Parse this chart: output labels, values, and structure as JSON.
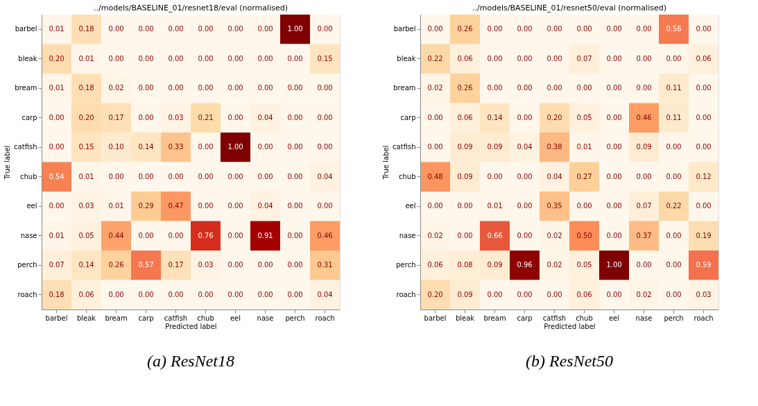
{
  "chart_data": [
    {
      "type": "heatmap",
      "title": "../models/BASELINE_01/resnet18/eval (normalised)",
      "xlabel": "Predicted label",
      "ylabel": "True label",
      "annotations": [
        "(a) ResNet18"
      ],
      "categories": [
        "barbel",
        "bleak",
        "bream",
        "carp",
        "catfish",
        "chub",
        "eel",
        "nase",
        "perch",
        "roach"
      ],
      "y_categories": [
        "barbel",
        "bleak",
        "bream",
        "carp",
        "catfish",
        "chub",
        "eel",
        "nase",
        "perch",
        "roach"
      ],
      "cells": [
        [
          0.01,
          0.18,
          0.0,
          0.0,
          0.0,
          0.0,
          0.0,
          0.0,
          1.0,
          0.0
        ],
        [
          0.2,
          0.01,
          0.0,
          0.0,
          0.0,
          0.0,
          0.0,
          0.0,
          0.0,
          0.15
        ],
        [
          0.01,
          0.18,
          0.02,
          0.0,
          0.0,
          0.0,
          0.0,
          0.0,
          0.0,
          0.0
        ],
        [
          0.0,
          0.2,
          0.17,
          0.0,
          0.03,
          0.21,
          0.0,
          0.04,
          0.0,
          0.0
        ],
        [
          0.0,
          0.15,
          0.1,
          0.14,
          0.33,
          0.0,
          1.0,
          0.0,
          0.0,
          0.0
        ],
        [
          0.54,
          0.01,
          0.0,
          0.0,
          0.0,
          0.0,
          0.0,
          0.0,
          0.0,
          0.04
        ],
        [
          0.0,
          0.03,
          0.01,
          0.29,
          0.47,
          0.0,
          0.0,
          0.04,
          0.0,
          0.0
        ],
        [
          0.01,
          0.05,
          0.44,
          0.0,
          0.0,
          0.76,
          0.0,
          0.91,
          0.0,
          0.46
        ],
        [
          0.07,
          0.14,
          0.26,
          0.57,
          0.17,
          0.03,
          0.0,
          0.0,
          0.0,
          0.31
        ],
        [
          0.18,
          0.06,
          0.0,
          0.0,
          0.0,
          0.0,
          0.0,
          0.0,
          0.0,
          0.04
        ]
      ],
      "cell_labels": [
        [
          "0.01",
          "0.18",
          "0.00",
          "0.00",
          "0.00",
          "0.00",
          "0.00",
          "0.00",
          "1.00",
          "0.00"
        ],
        [
          "0.20",
          "0.01",
          "0.00",
          "0.00",
          "0.00",
          "0.00",
          "0.00",
          "0.00",
          "0.00",
          "0.15"
        ],
        [
          "0.01",
          "0.18",
          "0.02",
          "0.00",
          "0.00",
          "0.00",
          "0.00",
          "0.00",
          "0.00",
          "0.00"
        ],
        [
          "0.00",
          "0.20",
          "0.17",
          "0.00",
          "0.03",
          "0.21",
          "0.00",
          "0.04",
          "0.00",
          "0.00"
        ],
        [
          "0.00",
          "0.15",
          "0.10",
          "0.14",
          "0.33",
          "0.00",
          "1.00",
          "0.00",
          "0.00",
          "0.00"
        ],
        [
          "0.54",
          "0.01",
          "0.00",
          "0.00",
          "0.00",
          "0.00",
          "0.00",
          "0.00",
          "0.00",
          "0.04"
        ],
        [
          "0.00",
          "0.03",
          "0.01",
          "0.29",
          "0.47",
          "0.00",
          "0.00",
          "0.04",
          "0.00",
          "0.00"
        ],
        [
          "0.01",
          "0.05",
          "0.44",
          "0.00",
          "0.00",
          "0.76",
          "0.00",
          "0.91",
          "0.00",
          "0.46"
        ],
        [
          "0.07",
          "0.14",
          "0.26",
          "0.57",
          "0.17",
          "0.03",
          "0.00",
          "0.00",
          "0.00",
          "0.31"
        ],
        [
          "0.18",
          "0.06",
          "0.00",
          "0.00",
          "0.00",
          "0.00",
          "0.00",
          "0.00",
          "0.00",
          "0.04"
        ]
      ]
    },
    {
      "type": "heatmap",
      "title": "../models/BASELINE_01/resnet50/eval (normalised)",
      "xlabel": "Predicted label",
      "ylabel": "True label",
      "annotations": [
        "(b) ResNet50"
      ],
      "categories": [
        "barbel",
        "bleak",
        "bream",
        "carp",
        "catfish",
        "chub",
        "eel",
        "nase",
        "perch",
        "roach"
      ],
      "y_categories": [
        "barbel",
        "bleak",
        "bream",
        "carp",
        "catfish",
        "chub",
        "eel",
        "nase",
        "perch",
        "roach"
      ],
      "cells": [
        [
          0.0,
          0.26,
          0.0,
          0.0,
          0.0,
          0.0,
          0.0,
          0.0,
          0.56,
          0.0
        ],
        [
          0.22,
          0.06,
          0.0,
          0.0,
          0.0,
          0.07,
          0.0,
          0.0,
          0.0,
          0.06
        ],
        [
          0.02,
          0.26,
          0.0,
          0.0,
          0.0,
          0.0,
          0.0,
          0.0,
          0.11,
          0.0
        ],
        [
          0.0,
          0.06,
          0.14,
          0.0,
          0.2,
          0.05,
          0.0,
          0.46,
          0.11,
          0.0
        ],
        [
          0.0,
          0.09,
          0.09,
          0.04,
          0.38,
          0.01,
          0.0,
          0.09,
          0.0,
          0.0
        ],
        [
          0.48,
          0.09,
          0.0,
          0.0,
          0.04,
          0.27,
          0.0,
          0.0,
          0.0,
          0.12
        ],
        [
          0.0,
          0.0,
          0.01,
          0.0,
          0.35,
          0.0,
          0.0,
          0.07,
          0.22,
          0.0
        ],
        [
          0.02,
          0.0,
          0.66,
          0.0,
          0.02,
          0.5,
          0.0,
          0.37,
          0.0,
          0.19
        ],
        [
          0.06,
          0.08,
          0.09,
          0.96,
          0.02,
          0.05,
          1.0,
          0.0,
          0.0,
          0.59
        ],
        [
          0.2,
          0.09,
          0.0,
          0.0,
          0.0,
          0.06,
          0.0,
          0.02,
          0.0,
          0.03
        ]
      ],
      "cell_labels": [
        [
          "0.00",
          "0.26",
          "0.00",
          "0.00",
          "0.00",
          "0.00",
          "0.00",
          "0.00",
          "0.56",
          "0.00"
        ],
        [
          "0.22",
          "0.06",
          "0.00",
          "0.00",
          "0.00",
          "0.07",
          "0.00",
          "0.00",
          "0.00",
          "0.06"
        ],
        [
          "0.02",
          "0.26",
          "0.00",
          "0.00",
          "0.00",
          "0.00",
          "0.00",
          "0.00",
          "0.11",
          "0.00"
        ],
        [
          "0.00",
          "0.06",
          "0.14",
          "0.00",
          "0.20",
          "0.05",
          "0.00",
          "0.46",
          "0.11",
          "0.00"
        ],
        [
          "0.00",
          "0.09",
          "0.09",
          "0.04",
          "0.38",
          "0.01",
          "0.00",
          "0.09",
          "0.00",
          "0.00"
        ],
        [
          "0.48",
          "0.09",
          "0.00",
          "0.00",
          "0.04",
          "0.27",
          "0.00",
          "0.00",
          "0.00",
          "0.12"
        ],
        [
          "0.00",
          "0.00",
          "0.01",
          "0.00",
          "0.35",
          "0.00",
          "0.00",
          "0.07",
          "0.22",
          "0.00"
        ],
        [
          "0.02",
          "0.00",
          "0.66",
          "0.00",
          "0.02",
          "0.50",
          "0.00",
          "0.37",
          "0.00",
          "0.19"
        ],
        [
          "0.06",
          "0.08",
          "0.09",
          "0.96",
          "0.02",
          "0.05",
          "1.00",
          "0.00",
          "0.00",
          "0.59"
        ],
        [
          "0.20",
          "0.09",
          "0.00",
          "0.00",
          "0.00",
          "0.06",
          "0.00",
          "0.02",
          "0.00",
          "0.03"
        ]
      ]
    }
  ]
}
